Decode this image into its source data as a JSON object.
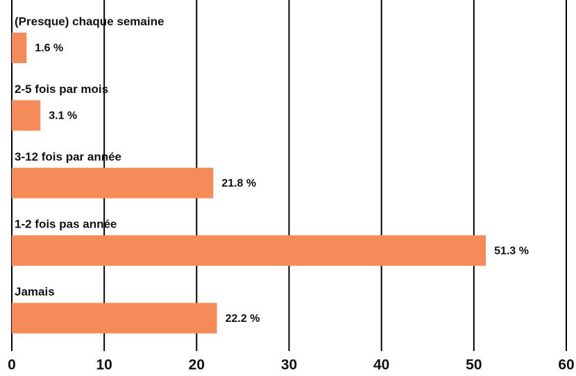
{
  "chart_data": {
    "type": "bar",
    "orientation": "horizontal",
    "categories": [
      "(Presque) chaque semaine",
      "2-5 fois par mois",
      "3-12 fois par année",
      "1-2 fois pas année",
      "Jamais"
    ],
    "values": [
      1.6,
      3.1,
      21.8,
      51.3,
      22.2
    ],
    "value_labels": [
      "1.6 %",
      "3.1 %",
      "21.8 %",
      "51.3 %",
      "22.2 %"
    ],
    "color": "#f68b5a",
    "xlim": [
      0,
      60
    ],
    "xticks": [
      0,
      10,
      20,
      30,
      40,
      50,
      60
    ],
    "grid": true
  }
}
